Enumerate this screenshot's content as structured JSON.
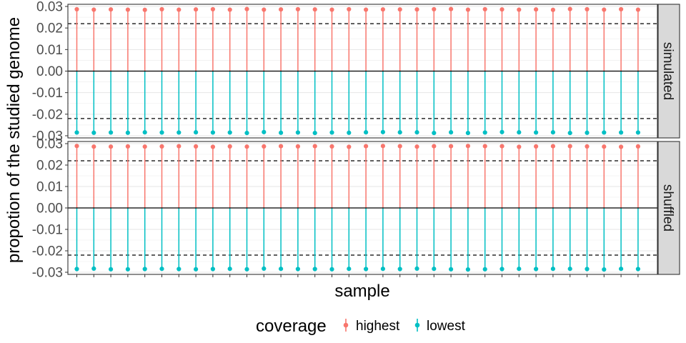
{
  "chart_data": {
    "type": "lollipop",
    "xlabel": "sample",
    "ylabel": "propotion of the studied genome",
    "ylim": [
      -0.031,
      0.031
    ],
    "yticks": [
      "0.03",
      "0.02",
      "0.01",
      "0.00",
      "-0.01",
      "-0.02",
      "-0.03"
    ],
    "ytick_values": [
      0.03,
      0.02,
      0.01,
      0.0,
      -0.01,
      -0.02,
      -0.03
    ],
    "hline_solid": 0.0,
    "hline_dashed": [
      0.022,
      -0.022
    ],
    "n_samples": 34,
    "legend": {
      "title": "coverage",
      "position": "bottom",
      "entries": [
        {
          "name": "highest",
          "color": "#F8766D"
        },
        {
          "name": "lowest",
          "color": "#00BFC4"
        }
      ]
    },
    "panels": [
      {
        "strip": "simulated",
        "series": [
          {
            "name": "highest",
            "color": "#F8766D",
            "values": [
              0.0287,
              0.0285,
              0.0286,
              0.0285,
              0.0284,
              0.0287,
              0.0285,
              0.0286,
              0.0287,
              0.0285,
              0.0288,
              0.0285,
              0.0286,
              0.0287,
              0.0286,
              0.0285,
              0.0287,
              0.0285,
              0.0286,
              0.0286,
              0.0286,
              0.0287,
              0.0288,
              0.0285,
              0.0287,
              0.0286,
              0.0285,
              0.0286,
              0.0284,
              0.0288,
              0.0287,
              0.0285,
              0.0287,
              0.0285
            ]
          },
          {
            "name": "lowest",
            "color": "#00BFC4",
            "values": [
              -0.0285,
              -0.0286,
              -0.0285,
              -0.0286,
              -0.0284,
              -0.0285,
              -0.0285,
              -0.0284,
              -0.0285,
              -0.0285,
              -0.0287,
              -0.0283,
              -0.0286,
              -0.0285,
              -0.0287,
              -0.0285,
              -0.0286,
              -0.0284,
              -0.0283,
              -0.0284,
              -0.0284,
              -0.0287,
              -0.0284,
              -0.0287,
              -0.0285,
              -0.0283,
              -0.0284,
              -0.0285,
              -0.0284,
              -0.0287,
              -0.0286,
              -0.0285,
              -0.0285,
              -0.0285
            ]
          }
        ]
      },
      {
        "strip": "shuffled",
        "series": [
          {
            "name": "highest",
            "color": "#F8766D",
            "values": [
              0.0289,
              0.0286,
              0.0286,
              0.0287,
              0.0286,
              0.0287,
              0.0288,
              0.0287,
              0.0285,
              0.0287,
              0.0286,
              0.0287,
              0.0288,
              0.0287,
              0.0288,
              0.0287,
              0.0285,
              0.0288,
              0.0289,
              0.0288,
              0.0286,
              0.0288,
              0.0288,
              0.0289,
              0.0288,
              0.0288,
              0.0285,
              0.0287,
              0.0288,
              0.0288,
              0.0287,
              0.0286,
              0.0285,
              0.0287
            ]
          },
          {
            "name": "lowest",
            "color": "#00BFC4",
            "values": [
              -0.0285,
              -0.0283,
              -0.0286,
              -0.0286,
              -0.0285,
              -0.0284,
              -0.0285,
              -0.0286,
              -0.0285,
              -0.0284,
              -0.0286,
              -0.0283,
              -0.0284,
              -0.0285,
              -0.0285,
              -0.0286,
              -0.0284,
              -0.0285,
              -0.0284,
              -0.0285,
              -0.0283,
              -0.0284,
              -0.0286,
              -0.0287,
              -0.0286,
              -0.0285,
              -0.0284,
              -0.0285,
              -0.0284,
              -0.0284,
              -0.0285,
              -0.0287,
              -0.0284,
              -0.0285
            ]
          }
        ]
      }
    ]
  }
}
